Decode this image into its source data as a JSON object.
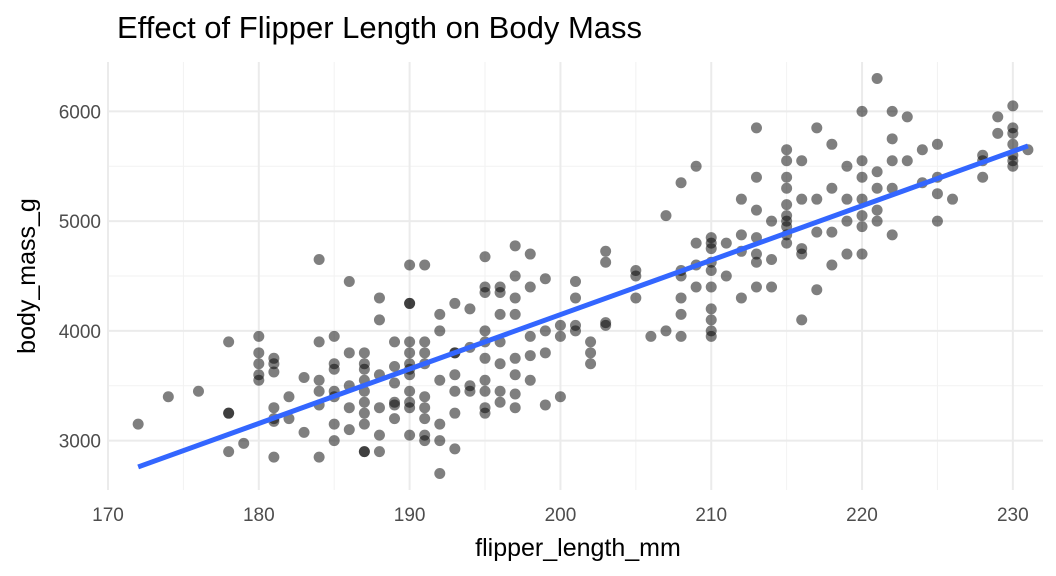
{
  "chart_data": {
    "type": "scatter",
    "title": "Effect of Flipper Length on Body Mass",
    "xlabel": "flipper_length_mm",
    "ylabel": "body_mass_g",
    "xlim": [
      170,
      232
    ],
    "ylim": [
      2550,
      6450
    ],
    "x_ticks": [
      170,
      180,
      190,
      200,
      210,
      220,
      230
    ],
    "y_ticks": [
      3000,
      4000,
      5000,
      6000
    ],
    "grid": true,
    "point_color": "#000000",
    "point_opacity": 0.5,
    "line_color": "#3366ff",
    "points": [
      [
        172,
        3150
      ],
      [
        174,
        3400
      ],
      [
        176,
        3450
      ],
      [
        178,
        3900
      ],
      [
        178,
        3250
      ],
      [
        178,
        3250
      ],
      [
        178,
        2900
      ],
      [
        179,
        2975
      ],
      [
        180,
        3950
      ],
      [
        180,
        3800
      ],
      [
        180,
        3700
      ],
      [
        180,
        3600
      ],
      [
        180,
        3550
      ],
      [
        181,
        3750
      ],
      [
        181,
        3700
      ],
      [
        181,
        3625
      ],
      [
        181,
        3300
      ],
      [
        181,
        3200
      ],
      [
        181,
        3175
      ],
      [
        181,
        2850
      ],
      [
        182,
        3200
      ],
      [
        182,
        3400
      ],
      [
        183,
        3575
      ],
      [
        183,
        3075
      ],
      [
        184,
        4650
      ],
      [
        184,
        3900
      ],
      [
        184,
        3550
      ],
      [
        184,
        3450
      ],
      [
        184,
        3325
      ],
      [
        184,
        2850
      ],
      [
        185,
        3950
      ],
      [
        185,
        3700
      ],
      [
        185,
        3650
      ],
      [
        185,
        3450
      ],
      [
        185,
        3400
      ],
      [
        185,
        3150
      ],
      [
        185,
        3000
      ],
      [
        186,
        4450
      ],
      [
        186,
        3800
      ],
      [
        186,
        3500
      ],
      [
        186,
        3300
      ],
      [
        186,
        3100
      ],
      [
        187,
        3800
      ],
      [
        187,
        3700
      ],
      [
        187,
        3650
      ],
      [
        187,
        3550
      ],
      [
        187,
        3450
      ],
      [
        187,
        3350
      ],
      [
        187,
        3250
      ],
      [
        187,
        3150
      ],
      [
        187,
        2900
      ],
      [
        187,
        2900
      ],
      [
        188,
        4300
      ],
      [
        188,
        4100
      ],
      [
        188,
        3600
      ],
      [
        188,
        3300
      ],
      [
        188,
        3050
      ],
      [
        188,
        2900
      ],
      [
        189,
        3900
      ],
      [
        189,
        3675
      ],
      [
        189,
        3525
      ],
      [
        189,
        3350
      ],
      [
        189,
        3325
      ],
      [
        189,
        3200
      ],
      [
        190,
        4600
      ],
      [
        190,
        4250
      ],
      [
        190,
        4250
      ],
      [
        190,
        3900
      ],
      [
        190,
        3800
      ],
      [
        190,
        3700
      ],
      [
        190,
        3650
      ],
      [
        190,
        3600
      ],
      [
        190,
        3450
      ],
      [
        190,
        3350
      ],
      [
        190,
        3300
      ],
      [
        190,
        3050
      ],
      [
        191,
        4600
      ],
      [
        191,
        3900
      ],
      [
        191,
        3800
      ],
      [
        191,
        3700
      ],
      [
        191,
        3400
      ],
      [
        191,
        3300
      ],
      [
        191,
        3200
      ],
      [
        191,
        3050
      ],
      [
        191,
        3000
      ],
      [
        192,
        4150
      ],
      [
        192,
        4000
      ],
      [
        192,
        3550
      ],
      [
        192,
        3150
      ],
      [
        192,
        3000
      ],
      [
        192,
        2700
      ],
      [
        193,
        4250
      ],
      [
        193,
        3800
      ],
      [
        193,
        3800
      ],
      [
        193,
        3600
      ],
      [
        193,
        3450
      ],
      [
        193,
        3250
      ],
      [
        193,
        2925
      ],
      [
        194,
        4200
      ],
      [
        194,
        3850
      ],
      [
        194,
        3500
      ],
      [
        194,
        3450
      ],
      [
        195,
        4675
      ],
      [
        195,
        4400
      ],
      [
        195,
        4350
      ],
      [
        195,
        4000
      ],
      [
        195,
        3900
      ],
      [
        195,
        3750
      ],
      [
        195,
        3550
      ],
      [
        195,
        3450
      ],
      [
        195,
        3300
      ],
      [
        195,
        3250
      ],
      [
        196,
        4400
      ],
      [
        196,
        4350
      ],
      [
        196,
        4150
      ],
      [
        196,
        3900
      ],
      [
        196,
        3700
      ],
      [
        196,
        3450
      ],
      [
        196,
        3350
      ],
      [
        197,
        4775
      ],
      [
        197,
        4500
      ],
      [
        197,
        4300
      ],
      [
        197,
        4150
      ],
      [
        197,
        3750
      ],
      [
        197,
        3600
      ],
      [
        197,
        3425
      ],
      [
        197,
        3300
      ],
      [
        198,
        4700
      ],
      [
        198,
        4400
      ],
      [
        198,
        3950
      ],
      [
        198,
        3775
      ],
      [
        198,
        3550
      ],
      [
        199,
        4475
      ],
      [
        199,
        4000
      ],
      [
        199,
        3800
      ],
      [
        199,
        3325
      ],
      [
        200,
        4050
      ],
      [
        200,
        3950
      ],
      [
        200,
        3400
      ],
      [
        201,
        4450
      ],
      [
        201,
        4300
      ],
      [
        201,
        4050
      ],
      [
        201,
        4000
      ],
      [
        202,
        3900
      ],
      [
        202,
        3800
      ],
      [
        202,
        3700
      ],
      [
        203,
        4725
      ],
      [
        203,
        4625
      ],
      [
        203,
        4075
      ],
      [
        203,
        4050
      ],
      [
        205,
        4550
      ],
      [
        205,
        4500
      ],
      [
        205,
        4300
      ],
      [
        206,
        3950
      ],
      [
        207,
        5050
      ],
      [
        207,
        4000
      ],
      [
        208,
        5350
      ],
      [
        208,
        4550
      ],
      [
        208,
        4500
      ],
      [
        208,
        4300
      ],
      [
        208,
        4150
      ],
      [
        208,
        3950
      ],
      [
        209,
        5500
      ],
      [
        209,
        4800
      ],
      [
        209,
        4600
      ],
      [
        209,
        4400
      ],
      [
        210,
        4850
      ],
      [
        210,
        4800
      ],
      [
        210,
        4750
      ],
      [
        210,
        4625
      ],
      [
        210,
        4550
      ],
      [
        210,
        4400
      ],
      [
        210,
        4200
      ],
      [
        210,
        4100
      ],
      [
        210,
        4000
      ],
      [
        210,
        3950
      ],
      [
        211,
        4800
      ],
      [
        211,
        4500
      ],
      [
        212,
        5200
      ],
      [
        212,
        4875
      ],
      [
        212,
        4725
      ],
      [
        212,
        4300
      ],
      [
        213,
        5850
      ],
      [
        213,
        5400
      ],
      [
        213,
        5100
      ],
      [
        213,
        4850
      ],
      [
        213,
        4700
      ],
      [
        213,
        4625
      ],
      [
        213,
        4400
      ],
      [
        214,
        5000
      ],
      [
        214,
        4650
      ],
      [
        214,
        4400
      ],
      [
        215,
        5650
      ],
      [
        215,
        5550
      ],
      [
        215,
        5400
      ],
      [
        215,
        5300
      ],
      [
        215,
        5150
      ],
      [
        215,
        5050
      ],
      [
        215,
        5000
      ],
      [
        215,
        4950
      ],
      [
        215,
        4875
      ],
      [
        215,
        4800
      ],
      [
        216,
        5550
      ],
      [
        216,
        5200
      ],
      [
        216,
        4750
      ],
      [
        216,
        4700
      ],
      [
        216,
        4100
      ],
      [
        217,
        5850
      ],
      [
        217,
        5200
      ],
      [
        217,
        4900
      ],
      [
        217,
        4375
      ],
      [
        218,
        5700
      ],
      [
        218,
        5300
      ],
      [
        218,
        4900
      ],
      [
        218,
        4600
      ],
      [
        219,
        5500
      ],
      [
        219,
        5200
      ],
      [
        219,
        5000
      ],
      [
        219,
        4700
      ],
      [
        220,
        6000
      ],
      [
        220,
        5550
      ],
      [
        220,
        5400
      ],
      [
        220,
        5200
      ],
      [
        220,
        5050
      ],
      [
        220,
        4950
      ],
      [
        220,
        4700
      ],
      [
        221,
        6300
      ],
      [
        221,
        5450
      ],
      [
        221,
        5300
      ],
      [
        221,
        5100
      ],
      [
        221,
        5000
      ],
      [
        222,
        6000
      ],
      [
        222,
        5750
      ],
      [
        222,
        5550
      ],
      [
        222,
        5300
      ],
      [
        222,
        4875
      ],
      [
        223,
        5950
      ],
      [
        223,
        5550
      ],
      [
        224,
        5650
      ],
      [
        224,
        5350
      ],
      [
        225,
        5700
      ],
      [
        225,
        5400
      ],
      [
        225,
        5250
      ],
      [
        225,
        5000
      ],
      [
        226,
        5200
      ],
      [
        228,
        5600
      ],
      [
        228,
        5550
      ],
      [
        228,
        5400
      ],
      [
        229,
        5950
      ],
      [
        229,
        5800
      ],
      [
        230,
        6050
      ],
      [
        230,
        5850
      ],
      [
        230,
        5800
      ],
      [
        230,
        5700
      ],
      [
        230,
        5600
      ],
      [
        230,
        5550
      ],
      [
        230,
        5500
      ],
      [
        231,
        5650
      ]
    ],
    "trend_line": {
      "x": [
        172,
        231
      ],
      "y": [
        2760,
        5685
      ]
    }
  }
}
